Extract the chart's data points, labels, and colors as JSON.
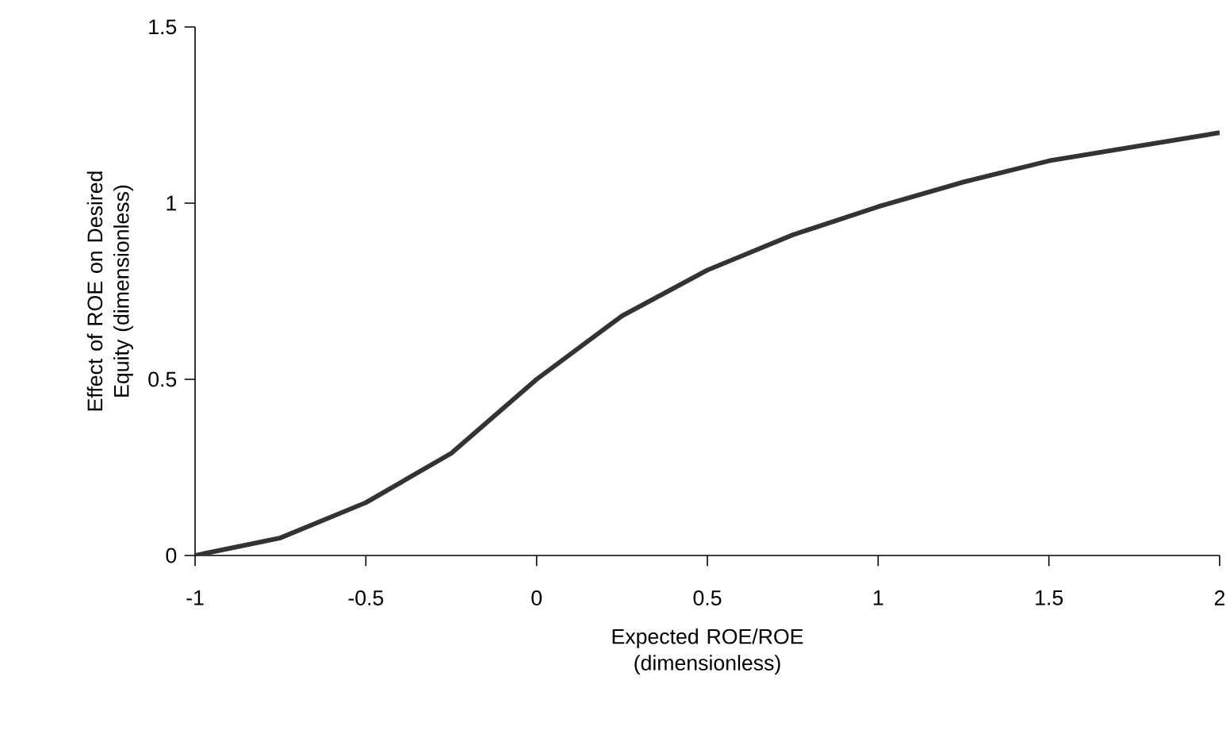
{
  "chart_data": {
    "type": "line",
    "xlabel": "Expected ROE/ROE (dimensionless)",
    "ylabel": "Effect of ROE on Desired Equity (dimensionless)",
    "x": [
      -1,
      -0.75,
      -0.5,
      -0.25,
      0,
      0.25,
      0.5,
      0.75,
      1,
      1.25,
      1.5,
      1.75,
      2
    ],
    "series": [
      {
        "color": "#333333",
        "values": [
          0,
          0.05,
          0.15,
          0.29,
          0.5,
          0.68,
          0.81,
          0.91,
          0.99,
          1.06,
          1.12,
          1.16,
          1.2
        ]
      }
    ],
    "xlim": [
      -1,
      2
    ],
    "ylim": [
      0,
      1.5
    ],
    "xticks": [
      -1,
      -0.5,
      0,
      0.5,
      1,
      1.5,
      2
    ],
    "yticks": [
      0,
      0.5,
      1,
      1.5
    ]
  }
}
